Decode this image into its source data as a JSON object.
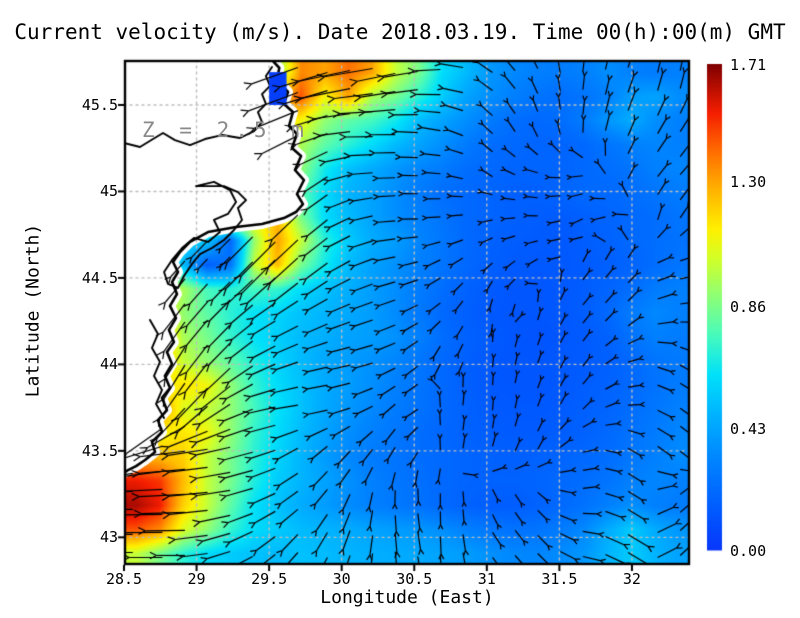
{
  "chart_data": {
    "type": "heatmap",
    "title": "Current velocity (m/s). Date 2018.03.19. Time 00(h):00(m) GMT",
    "annotation": "Z = 2.5 m",
    "xlabel": "Longitude (East)",
    "ylabel": "Latitude (North)",
    "xlim": [
      28.5,
      32.4
    ],
    "ylim": [
      42.84,
      45.76
    ],
    "xticks": [
      28.5,
      29,
      29.5,
      30,
      30.5,
      31,
      31.5,
      32
    ],
    "xtick_labels": [
      "28.5",
      "29",
      "29.5",
      "30",
      "30.5",
      "31",
      "31.5",
      "32"
    ],
    "yticks": [
      43,
      43.5,
      44,
      44.5,
      45,
      45.5
    ],
    "ytick_labels": [
      "43",
      "43.5",
      "44",
      "44.5",
      "45",
      "45.5"
    ],
    "grid": true,
    "grid_color": "#bdbdbd",
    "land_color": "#ffffff",
    "coast_color": "#000000",
    "arrow_color": "#000000",
    "colorbar": {
      "min": 0.0,
      "max": 1.71,
      "tick_values": [
        1.71,
        1.3,
        0.86,
        0.43,
        0.0
      ],
      "tick_labels": [
        "1.71",
        "1.30",
        "0.86",
        "0.43",
        "0.00"
      ]
    },
    "colormap_stops": [
      [
        0.0,
        8,
        55,
        250
      ],
      [
        0.08,
        0,
        90,
        255
      ],
      [
        0.18,
        0,
        130,
        255
      ],
      [
        0.28,
        0,
        180,
        255
      ],
      [
        0.36,
        0,
        225,
        250
      ],
      [
        0.44,
        70,
        250,
        190
      ],
      [
        0.52,
        140,
        255,
        120
      ],
      [
        0.6,
        210,
        255,
        40
      ],
      [
        0.66,
        255,
        240,
        0
      ],
      [
        0.74,
        255,
        180,
        0
      ],
      [
        0.82,
        255,
        110,
        0
      ],
      [
        0.9,
        245,
        30,
        0
      ],
      [
        1.0,
        128,
        0,
        0
      ]
    ],
    "speed_grid": [
      [
        1.2,
        1.2,
        1.2,
        1.2,
        1.2,
        1.25,
        0.9,
        1.35,
        1.3,
        1.4,
        1.3,
        1.0,
        0.85,
        0.6,
        0.5,
        0.38,
        0.33,
        0.3,
        0.28,
        0.3,
        0.35,
        0.3,
        0.28,
        0.3
      ],
      [
        1.3,
        1.3,
        1.3,
        1.3,
        1.3,
        1.3,
        1.2,
        1.45,
        1.1,
        1.3,
        0.95,
        0.85,
        0.7,
        0.55,
        0.42,
        0.35,
        0.3,
        0.25,
        0.22,
        0.25,
        0.3,
        0.4,
        0.42,
        0.35
      ],
      [
        1.2,
        1.2,
        1.2,
        1.2,
        1.2,
        1.2,
        1.25,
        1.1,
        0.9,
        0.8,
        0.75,
        0.65,
        0.5,
        0.42,
        0.35,
        0.28,
        0.22,
        0.2,
        0.22,
        0.28,
        0.38,
        0.45,
        0.35,
        0.3
      ],
      [
        1.1,
        1.1,
        1.1,
        1.1,
        1.1,
        1.1,
        1.15,
        0.95,
        0.8,
        0.7,
        0.6,
        0.5,
        0.42,
        0.35,
        0.28,
        0.22,
        0.2,
        0.18,
        0.18,
        0.2,
        0.25,
        0.3,
        0.32,
        0.3
      ],
      [
        1.2,
        1.2,
        1.2,
        1.2,
        1.2,
        1.2,
        1.3,
        0.9,
        0.65,
        0.52,
        0.45,
        0.38,
        0.32,
        0.28,
        0.22,
        0.2,
        0.18,
        0.18,
        0.18,
        0.2,
        0.22,
        0.25,
        0.3,
        0.32
      ],
      [
        1.1,
        1.1,
        1.1,
        1.1,
        1.1,
        1.1,
        1.15,
        0.8,
        0.6,
        0.48,
        0.42,
        0.35,
        0.28,
        0.22,
        0.2,
        0.18,
        0.16,
        0.16,
        0.18,
        0.2,
        0.2,
        0.22,
        0.25,
        0.28
      ],
      [
        1.15,
        1.15,
        1.15,
        1.15,
        1.15,
        1.15,
        1.25,
        0.85,
        0.6,
        0.5,
        0.42,
        0.35,
        0.3,
        0.25,
        0.2,
        0.18,
        0.16,
        0.15,
        0.14,
        0.16,
        0.18,
        0.2,
        0.22,
        0.25
      ],
      [
        0.6,
        0.6,
        0.6,
        0.55,
        0.2,
        0.9,
        1.3,
        1.0,
        0.7,
        0.55,
        0.45,
        0.4,
        0.32,
        0.26,
        0.2,
        0.17,
        0.15,
        0.14,
        0.13,
        0.15,
        0.17,
        0.2,
        0.22,
        0.24
      ],
      [
        0.9,
        0.9,
        0.5,
        0.15,
        0.25,
        1.0,
        1.25,
        0.85,
        0.65,
        0.5,
        0.42,
        0.36,
        0.3,
        0.25,
        0.2,
        0.16,
        0.14,
        0.13,
        0.13,
        0.14,
        0.16,
        0.18,
        0.22,
        0.25
      ],
      [
        1.0,
        1.0,
        0.95,
        0.75,
        0.7,
        0.75,
        0.72,
        0.6,
        0.52,
        0.46,
        0.4,
        0.35,
        0.28,
        0.22,
        0.17,
        0.14,
        0.12,
        0.12,
        0.13,
        0.15,
        0.18,
        0.22,
        0.28,
        0.3
      ],
      [
        1.2,
        1.2,
        0.9,
        0.8,
        0.7,
        0.62,
        0.58,
        0.52,
        0.48,
        0.44,
        0.4,
        0.34,
        0.27,
        0.2,
        0.16,
        0.13,
        0.12,
        0.12,
        0.13,
        0.15,
        0.2,
        0.28,
        0.33,
        0.3
      ],
      [
        1.3,
        1.3,
        0.95,
        0.85,
        0.72,
        0.62,
        0.56,
        0.5,
        0.46,
        0.42,
        0.4,
        0.36,
        0.3,
        0.22,
        0.17,
        0.14,
        0.12,
        0.11,
        0.12,
        0.14,
        0.17,
        0.24,
        0.3,
        0.28
      ],
      [
        1.25,
        1.25,
        1.0,
        0.9,
        0.8,
        0.68,
        0.58,
        0.5,
        0.44,
        0.4,
        0.36,
        0.32,
        0.26,
        0.2,
        0.16,
        0.13,
        0.12,
        0.12,
        0.13,
        0.14,
        0.16,
        0.2,
        0.25,
        0.27
      ],
      [
        1.1,
        1.1,
        1.15,
        1.1,
        0.9,
        0.72,
        0.6,
        0.52,
        0.45,
        0.4,
        0.35,
        0.3,
        0.25,
        0.2,
        0.16,
        0.13,
        0.12,
        0.12,
        0.13,
        0.15,
        0.17,
        0.2,
        0.24,
        0.28
      ],
      [
        1.35,
        1.35,
        1.05,
        1.0,
        0.9,
        0.75,
        0.62,
        0.52,
        0.44,
        0.38,
        0.33,
        0.28,
        0.24,
        0.2,
        0.17,
        0.14,
        0.13,
        0.13,
        0.14,
        0.16,
        0.18,
        0.22,
        0.26,
        0.3
      ],
      [
        1.15,
        1.1,
        1.15,
        1.1,
        0.9,
        0.72,
        0.6,
        0.5,
        0.42,
        0.35,
        0.3,
        0.26,
        0.22,
        0.19,
        0.17,
        0.15,
        0.14,
        0.14,
        0.15,
        0.17,
        0.2,
        0.24,
        0.28,
        0.32
      ],
      [
        1.3,
        1.25,
        1.2,
        1.0,
        0.85,
        0.7,
        0.58,
        0.48,
        0.4,
        0.33,
        0.28,
        0.25,
        0.22,
        0.2,
        0.18,
        0.17,
        0.16,
        0.17,
        0.18,
        0.2,
        0.22,
        0.26,
        0.3,
        0.34
      ],
      [
        1.55,
        1.5,
        1.25,
        1.0,
        0.85,
        0.68,
        0.55,
        0.48,
        0.42,
        0.36,
        0.3,
        0.26,
        0.23,
        0.2,
        0.18,
        0.17,
        0.17,
        0.18,
        0.2,
        0.22,
        0.25,
        0.3,
        0.32,
        0.3
      ],
      [
        1.65,
        1.55,
        1.2,
        1.0,
        0.8,
        0.62,
        0.52,
        0.45,
        0.4,
        0.34,
        0.3,
        0.27,
        0.24,
        0.2,
        0.17,
        0.15,
        0.15,
        0.17,
        0.2,
        0.24,
        0.3,
        0.35,
        0.3,
        0.28
      ],
      [
        1.45,
        1.35,
        1.05,
        0.9,
        0.72,
        0.6,
        0.55,
        0.5,
        0.48,
        0.45,
        0.42,
        0.4,
        0.38,
        0.35,
        0.3,
        0.26,
        0.24,
        0.25,
        0.28,
        0.33,
        0.45,
        0.55,
        0.45,
        0.38
      ],
      [
        1.0,
        0.85,
        0.7,
        0.6,
        0.55,
        0.52,
        0.5,
        0.52,
        0.5,
        0.48,
        0.46,
        0.45,
        0.44,
        0.42,
        0.4,
        0.36,
        0.33,
        0.32,
        0.34,
        0.38,
        0.48,
        0.55,
        0.48,
        0.42
      ]
    ],
    "flow_u": [
      [
        -0.7,
        -0.7,
        -0.7,
        -0.8,
        -0.9,
        -0.95,
        -0.9,
        -0.95,
        -0.7,
        -0.4,
        0.1,
        0.3,
        0.2
      ],
      [
        -0.7,
        -0.7,
        -0.7,
        -0.8,
        -0.9,
        -1,
        -1,
        -0.9,
        -0.65,
        -0.3,
        0.1,
        0.35,
        0.5
      ],
      [
        -0.7,
        -0.7,
        -0.7,
        -0.7,
        -0.75,
        -1,
        -1,
        -0.95,
        -0.7,
        -0.85,
        -0.8,
        0.3,
        0.6
      ],
      [
        -0.7,
        -0.7,
        -0.7,
        -0.7,
        -0.7,
        -0.9,
        -1,
        -0.95,
        -0.8,
        -0.85,
        -0.6,
        -0.7,
        0.4
      ],
      [
        -0.7,
        -0.65,
        -0.7,
        -0.7,
        -0.75,
        -0.85,
        -0.95,
        -0.7,
        -0.5,
        -0.5,
        0.2,
        0.5,
        0.8
      ],
      [
        -0.6,
        -0.6,
        -0.7,
        -0.8,
        -0.85,
        -0.9,
        -0.85,
        -0.6,
        -0.1,
        0.2,
        0.5,
        0.55,
        0.85
      ],
      [
        -0.5,
        -0.5,
        -0.7,
        -0.85,
        -0.95,
        -0.95,
        -0.8,
        -0.2,
        0.1,
        0.3,
        0.5,
        0.8,
        0.75
      ],
      [
        -0.45,
        -0.65,
        -0.8,
        -0.95,
        -1,
        -0.85,
        -0.5,
        0.1,
        0.05,
        0.3,
        0.5,
        0.9,
        0.7
      ],
      [
        -0.9,
        -1,
        -0.95,
        -0.9,
        -0.7,
        -0.6,
        -0.4,
        0.1,
        0.25,
        0.4,
        0.8,
        0.75,
        0.7
      ],
      [
        -1,
        -1,
        -0.95,
        -0.85,
        -0.65,
        -0.25,
        0.15,
        -0.05,
        0.3,
        0.6,
        0.85,
        0.7,
        0.6
      ],
      [
        -1,
        -1,
        -0.9,
        -0.75,
        -0.5,
        -0.2,
        0.2,
        0,
        0.55,
        0.6,
        0.9,
        0.7,
        0.65
      ]
    ],
    "flow_v": [
      [
        -0.7,
        -0.7,
        -0.5,
        -0.3,
        -0.3,
        -0.15,
        -0.2,
        0,
        0.5,
        0.8,
        0.95,
        0.9,
        0.95
      ],
      [
        -0.7,
        -0.7,
        -0.6,
        -0.4,
        -0.35,
        0,
        0,
        0.2,
        0.65,
        0.9,
        0.95,
        0.9,
        0.8
      ],
      [
        -0.7,
        -0.7,
        -0.7,
        -0.7,
        -0.6,
        -0.1,
        0,
        0.1,
        0.5,
        0.2,
        -0.1,
        0.5,
        0.7
      ],
      [
        -0.7,
        -0.7,
        -0.7,
        -0.7,
        -0.65,
        -0.3,
        0,
        -0.1,
        -0.2,
        0,
        -0.3,
        -0.1,
        0.6
      ],
      [
        -0.7,
        -0.75,
        -0.7,
        -0.7,
        -0.6,
        -0.4,
        -0.15,
        -0.5,
        -0.5,
        -0.4,
        0.3,
        0.6,
        0.2
      ],
      [
        -0.8,
        -0.8,
        -0.7,
        -0.5,
        -0.45,
        -0.3,
        -0.35,
        -0.6,
        -0.9,
        0.7,
        0.6,
        0.6,
        0.1
      ],
      [
        -0.85,
        -0.85,
        -0.7,
        -0.4,
        -0.25,
        -0.2,
        -0.4,
        -0.85,
        0.9,
        0.85,
        0.7,
        0.3,
        -0.4
      ],
      [
        -0.9,
        -0.75,
        -0.5,
        -0.2,
        -0.1,
        -0.3,
        -0.6,
        0.95,
        1,
        0.8,
        0.6,
        0.1,
        -0.5
      ],
      [
        -0.3,
        -0.1,
        -0.2,
        -0.3,
        -0.6,
        -0.7,
        -0.8,
        0.9,
        0.85,
        0.7,
        0.2,
        -0.45,
        -0.55
      ],
      [
        0,
        -0.05,
        -0.15,
        -0.4,
        -0.7,
        -0.9,
        -0.95,
        -0.95,
        -0.8,
        -0.6,
        0.1,
        -0.5,
        0.5
      ],
      [
        0,
        0,
        -0.3,
        -0.6,
        -0.8,
        -0.9,
        -0.9,
        -1,
        -0.7,
        -0.6,
        -0.2,
        -0.5,
        0.6
      ]
    ],
    "coastline": [
      [
        29.52,
        45.76
      ],
      [
        29.57,
        45.714
      ],
      [
        29.554,
        45.644
      ],
      [
        29.63,
        45.575
      ],
      [
        29.602,
        45.506
      ],
      [
        29.664,
        45.459
      ],
      [
        29.637,
        45.378
      ],
      [
        29.692,
        45.332
      ],
      [
        29.657,
        45.251
      ],
      [
        29.72,
        45.205
      ],
      [
        29.678,
        45.124
      ],
      [
        29.74,
        45.066
      ],
      [
        29.692,
        44.985
      ],
      [
        29.733,
        44.927
      ],
      [
        29.685,
        44.881
      ],
      [
        29.602,
        44.846
      ],
      [
        29.451,
        44.812
      ],
      [
        29.272,
        44.794
      ],
      [
        29.079,
        44.765
      ],
      [
        28.955,
        44.708
      ],
      [
        28.886,
        44.65
      ],
      [
        28.838,
        44.592
      ],
      [
        28.872,
        44.534
      ],
      [
        28.831,
        44.476
      ],
      [
        28.865,
        44.407
      ],
      [
        28.817,
        44.338
      ],
      [
        28.858,
        44.268
      ],
      [
        28.81,
        44.199
      ],
      [
        28.844,
        44.129
      ],
      [
        28.796,
        44.072
      ],
      [
        28.831,
        44.002
      ],
      [
        28.782,
        43.933
      ],
      [
        28.817,
        43.863
      ],
      [
        28.762,
        43.806
      ],
      [
        28.796,
        43.736
      ],
      [
        28.734,
        43.678
      ],
      [
        28.762,
        43.609
      ],
      [
        28.693,
        43.551
      ],
      [
        28.714,
        43.493
      ],
      [
        28.645,
        43.447
      ],
      [
        28.583,
        43.412
      ],
      [
        28.528,
        43.389
      ],
      [
        28.5,
        43.372
      ]
    ],
    "lagoon_outlines": [
      [
        [
          28.5,
          45.28
        ],
        [
          28.61,
          45.257
        ],
        [
          28.7,
          45.303
        ],
        [
          28.769,
          45.338
        ],
        [
          28.851,
          45.297
        ],
        [
          28.955,
          45.268
        ],
        [
          29.058,
          45.303
        ],
        [
          29.175,
          45.326
        ],
        [
          29.299,
          45.309
        ],
        [
          29.396,
          45.349
        ],
        [
          29.451,
          45.401
        ],
        [
          29.423,
          45.459
        ],
        [
          29.478,
          45.506
        ],
        [
          29.451,
          45.563
        ],
        [
          29.506,
          45.61
        ],
        [
          29.478,
          45.667
        ],
        [
          29.52,
          45.72
        ]
      ],
      [
        [
          28.996,
          45.031
        ],
        [
          29.12,
          45.055
        ],
        [
          29.23,
          45.008
        ],
        [
          29.272,
          44.939
        ],
        [
          29.216,
          44.87
        ],
        [
          29.12,
          44.835
        ],
        [
          29.161,
          44.765
        ],
        [
          29.079,
          44.708
        ],
        [
          28.982,
          44.731
        ],
        [
          28.9,
          44.673
        ],
        [
          28.831,
          44.604
        ],
        [
          28.776,
          44.534
        ],
        [
          28.803,
          44.465
        ],
        [
          28.872,
          44.442
        ],
        [
          28.913,
          44.511
        ],
        [
          28.969,
          44.581
        ],
        [
          29.024,
          44.638
        ],
        [
          29.106,
          44.673
        ],
        [
          29.189,
          44.719
        ],
        [
          29.258,
          44.777
        ],
        [
          29.313,
          44.835
        ],
        [
          29.285,
          44.904
        ],
        [
          29.341,
          44.95
        ],
        [
          29.285,
          44.996
        ],
        [
          29.189,
          45.031
        ],
        [
          29.092,
          45.031
        ],
        [
          28.996,
          45.031
        ]
      ],
      [
        [
          28.679,
          44.257
        ],
        [
          28.734,
          44.176
        ],
        [
          28.693,
          44.095
        ],
        [
          28.748,
          44.014
        ],
        [
          28.707,
          43.933
        ],
        [
          28.762,
          43.852
        ],
        [
          28.721,
          43.771
        ],
        [
          28.776,
          43.69
        ]
      ]
    ],
    "lagoon_patch": {
      "lon_min": 29.5,
      "lon_max": 29.62,
      "lat_min": 45.5,
      "lat_max": 45.69,
      "value": 0.03
    }
  }
}
